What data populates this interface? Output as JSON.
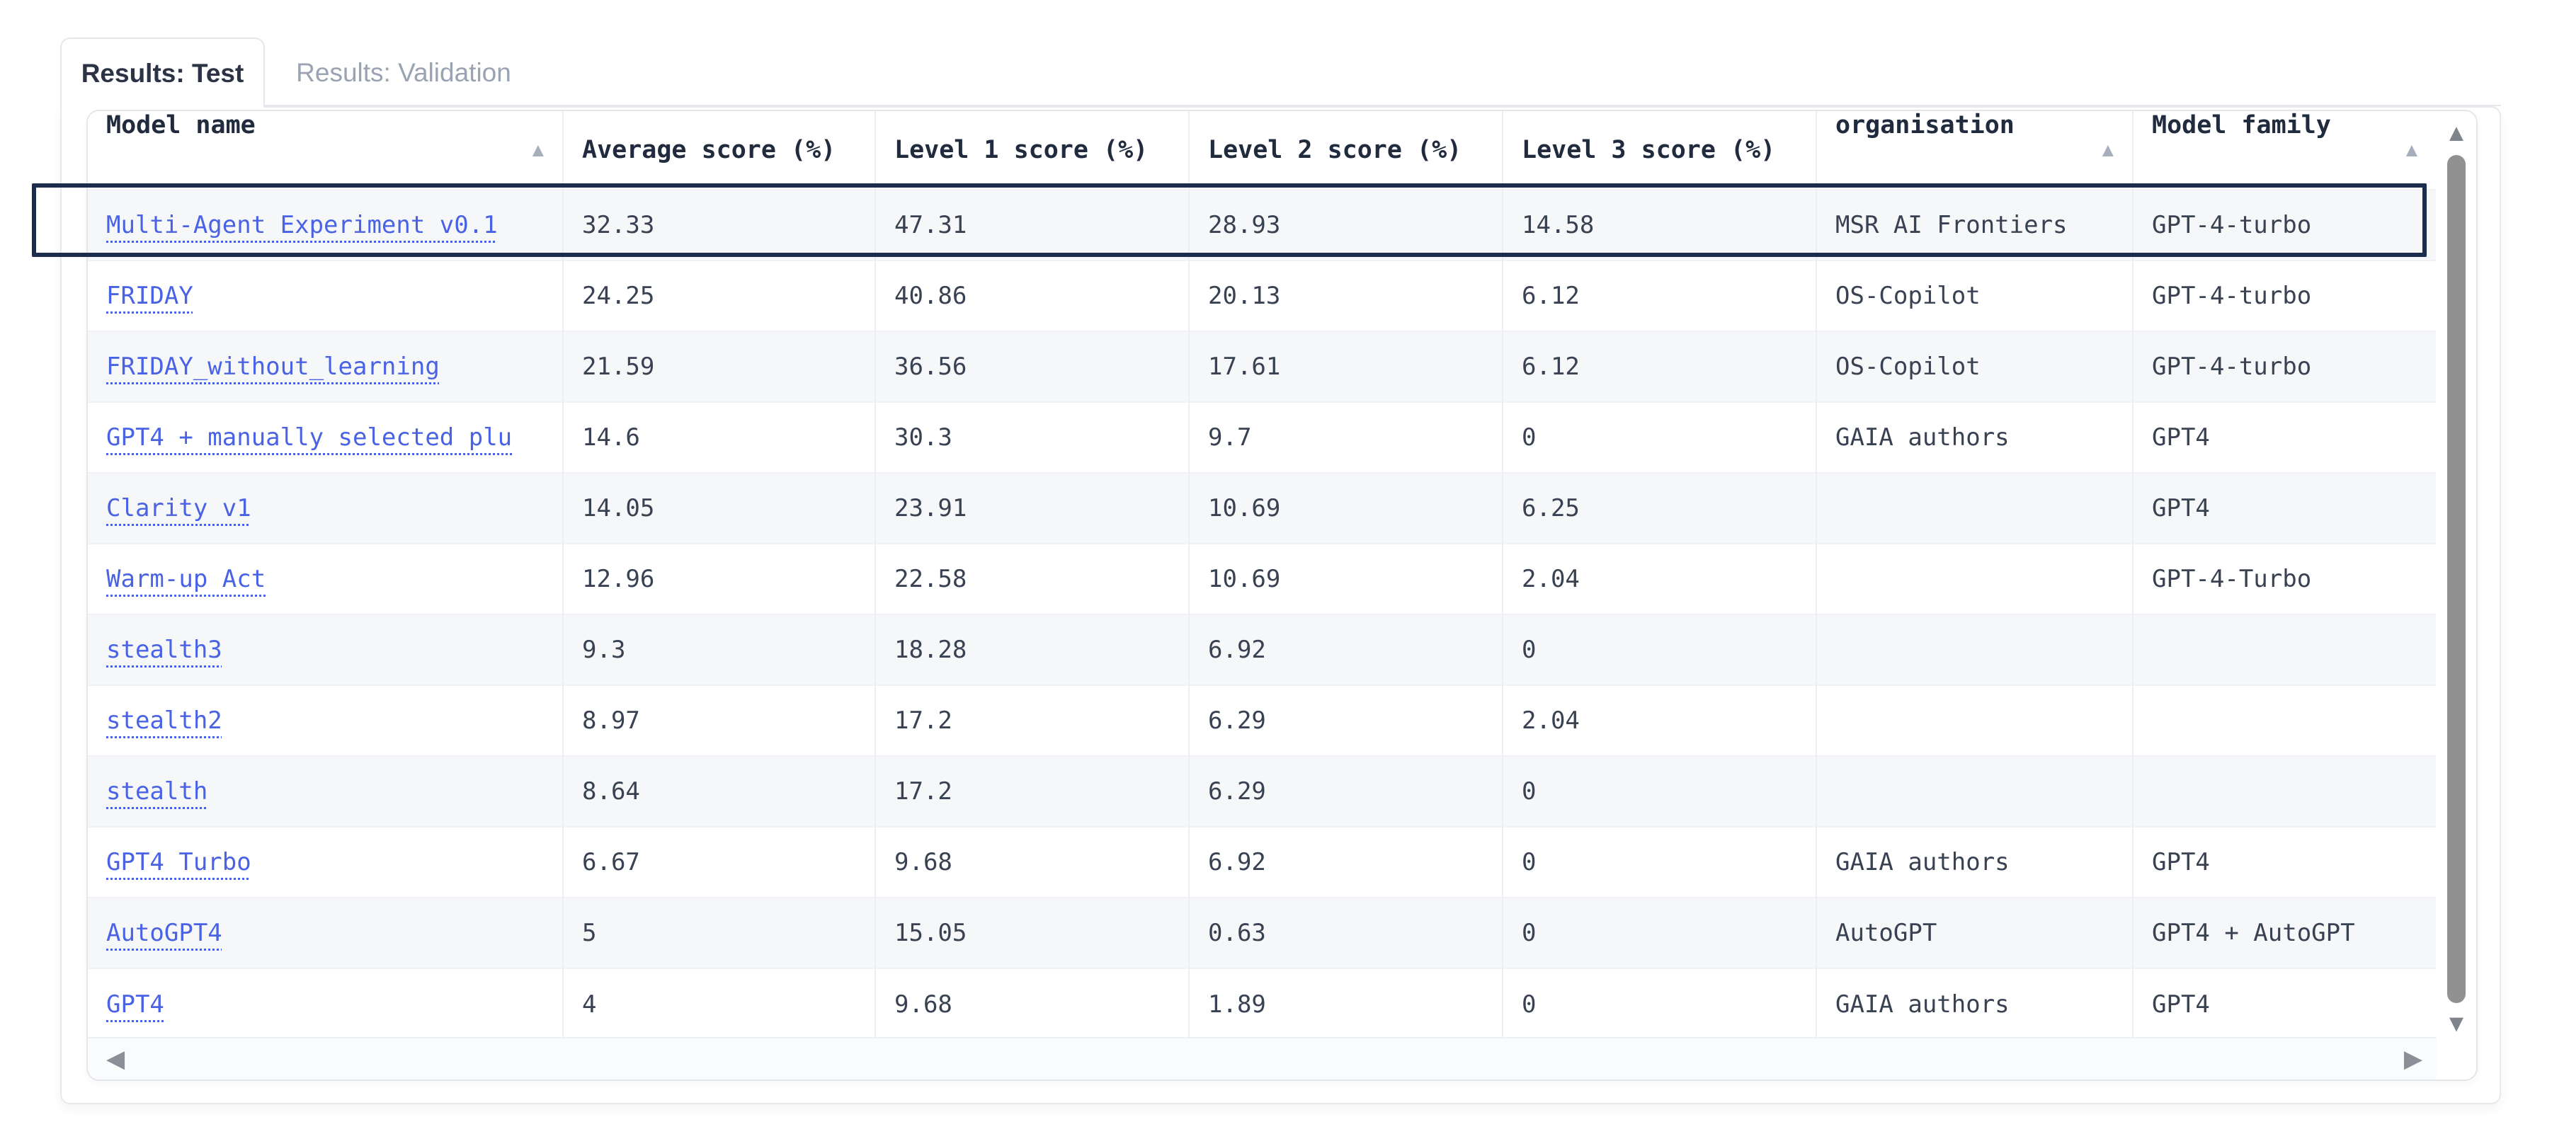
{
  "tabs": {
    "active": "Results: Test",
    "inactive": "Results: Validation"
  },
  "icons": {
    "sort_ascending": "▲",
    "scroll_up": "▲",
    "scroll_down": "▼",
    "scroll_left": "◀",
    "scroll_right": "▶"
  },
  "colors": {
    "link": "#4a63e4",
    "selection_border": "#1b2c4e",
    "alt_row_bg": "#f6f7f9",
    "header_text": "#212b3e",
    "cell_text": "#394252",
    "inactive_tab_text": "#9aa3b2"
  },
  "table": {
    "selected_row_index": 0,
    "columns": [
      {
        "label": "Model name",
        "sortable": true
      },
      {
        "label": "Average score (%)",
        "sortable": false
      },
      {
        "label": "Level 1 score (%)",
        "sortable": false
      },
      {
        "label": "Level 2 score (%)",
        "sortable": false
      },
      {
        "label": "Level 3 score (%)",
        "sortable": false
      },
      {
        "label": "organisation",
        "sortable": true
      },
      {
        "label": "Model family",
        "sortable": true
      }
    ],
    "rows": [
      {
        "model": "Multi-Agent Experiment v0.1",
        "average": "32.33",
        "level1": "47.31",
        "level2": "28.93",
        "level3": "14.58",
        "organisation": "MSR AI Frontiers",
        "family": "GPT-4-turbo"
      },
      {
        "model": "FRIDAY",
        "average": "24.25",
        "level1": "40.86",
        "level2": "20.13",
        "level3": "6.12",
        "organisation": "OS-Copilot",
        "family": "GPT-4-turbo"
      },
      {
        "model": "FRIDAY_without_learning",
        "average": "21.59",
        "level1": "36.56",
        "level2": "17.61",
        "level3": "6.12",
        "organisation": "OS-Copilot",
        "family": "GPT-4-turbo"
      },
      {
        "model": "GPT4 + manually selected plu",
        "average": "14.6",
        "level1": "30.3",
        "level2": "9.7",
        "level3": "0",
        "organisation": "GAIA authors",
        "family": "GPT4"
      },
      {
        "model": "Clarity v1",
        "average": "14.05",
        "level1": "23.91",
        "level2": "10.69",
        "level3": "6.25",
        "organisation": "",
        "family": "GPT4"
      },
      {
        "model": "Warm-up Act",
        "average": "12.96",
        "level1": "22.58",
        "level2": "10.69",
        "level3": "2.04",
        "organisation": "",
        "family": "GPT-4-Turbo"
      },
      {
        "model": "stealth3",
        "average": "9.3",
        "level1": "18.28",
        "level2": "6.92",
        "level3": "0",
        "organisation": "",
        "family": ""
      },
      {
        "model": "stealth2",
        "average": "8.97",
        "level1": "17.2",
        "level2": "6.29",
        "level3": "2.04",
        "organisation": "",
        "family": ""
      },
      {
        "model": "stealth",
        "average": "8.64",
        "level1": "17.2",
        "level2": "6.29",
        "level3": "0",
        "organisation": "",
        "family": ""
      },
      {
        "model": "GPT4 Turbo",
        "average": "6.67",
        "level1": "9.68",
        "level2": "6.92",
        "level3": "0",
        "organisation": "GAIA authors",
        "family": "GPT4"
      },
      {
        "model": "AutoGPT4",
        "average": "5",
        "level1": "15.05",
        "level2": "0.63",
        "level3": "0",
        "organisation": "AutoGPT",
        "family": "GPT4 + AutoGPT"
      },
      {
        "model": "GPT4",
        "average": "4",
        "level1": "9.68",
        "level2": "1.89",
        "level3": "0",
        "organisation": "GAIA authors",
        "family": "GPT4"
      }
    ]
  }
}
